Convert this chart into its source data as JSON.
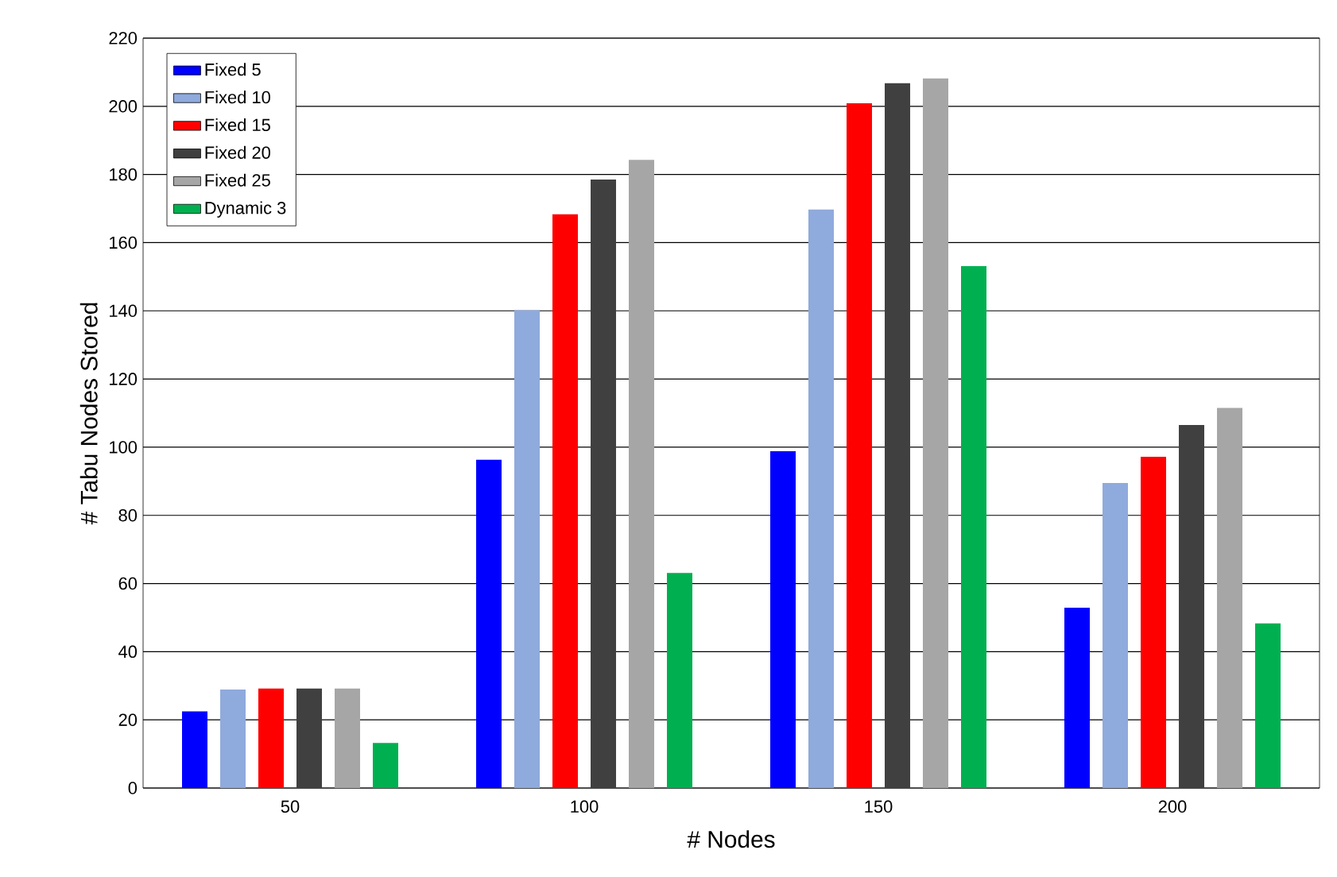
{
  "chart_data": {
    "type": "bar",
    "xlabel": "# Nodes",
    "ylabel": "# Tabu Nodes Stored",
    "categories": [
      "50",
      "100",
      "150",
      "200"
    ],
    "series": [
      {
        "name": "Fixed 5",
        "color": "#0000ff",
        "values": [
          22.5,
          96.3,
          98.8,
          52.9
        ]
      },
      {
        "name": "Fixed 10",
        "color": "#8faadc",
        "values": [
          28.9,
          140.2,
          169.7,
          89.5
        ]
      },
      {
        "name": "Fixed 15",
        "color": "#ff0000",
        "values": [
          29.2,
          168.3,
          200.9,
          97.2
        ]
      },
      {
        "name": "Fixed 20",
        "color": "#404040",
        "values": [
          29.2,
          178.5,
          206.8,
          106.5
        ]
      },
      {
        "name": "Fixed 25",
        "color": "#a6a6a6",
        "values": [
          29.2,
          184.3,
          208.2,
          111.5
        ]
      },
      {
        "name": "Dynamic 3",
        "color": "#00b050",
        "values": [
          13.2,
          63.1,
          153.1,
          48.3
        ]
      }
    ],
    "ylim": [
      0,
      220
    ],
    "yticks": [
      0,
      20,
      40,
      60,
      80,
      100,
      120,
      140,
      160,
      180,
      200,
      220
    ],
    "grid": "y",
    "legend": "top left"
  }
}
